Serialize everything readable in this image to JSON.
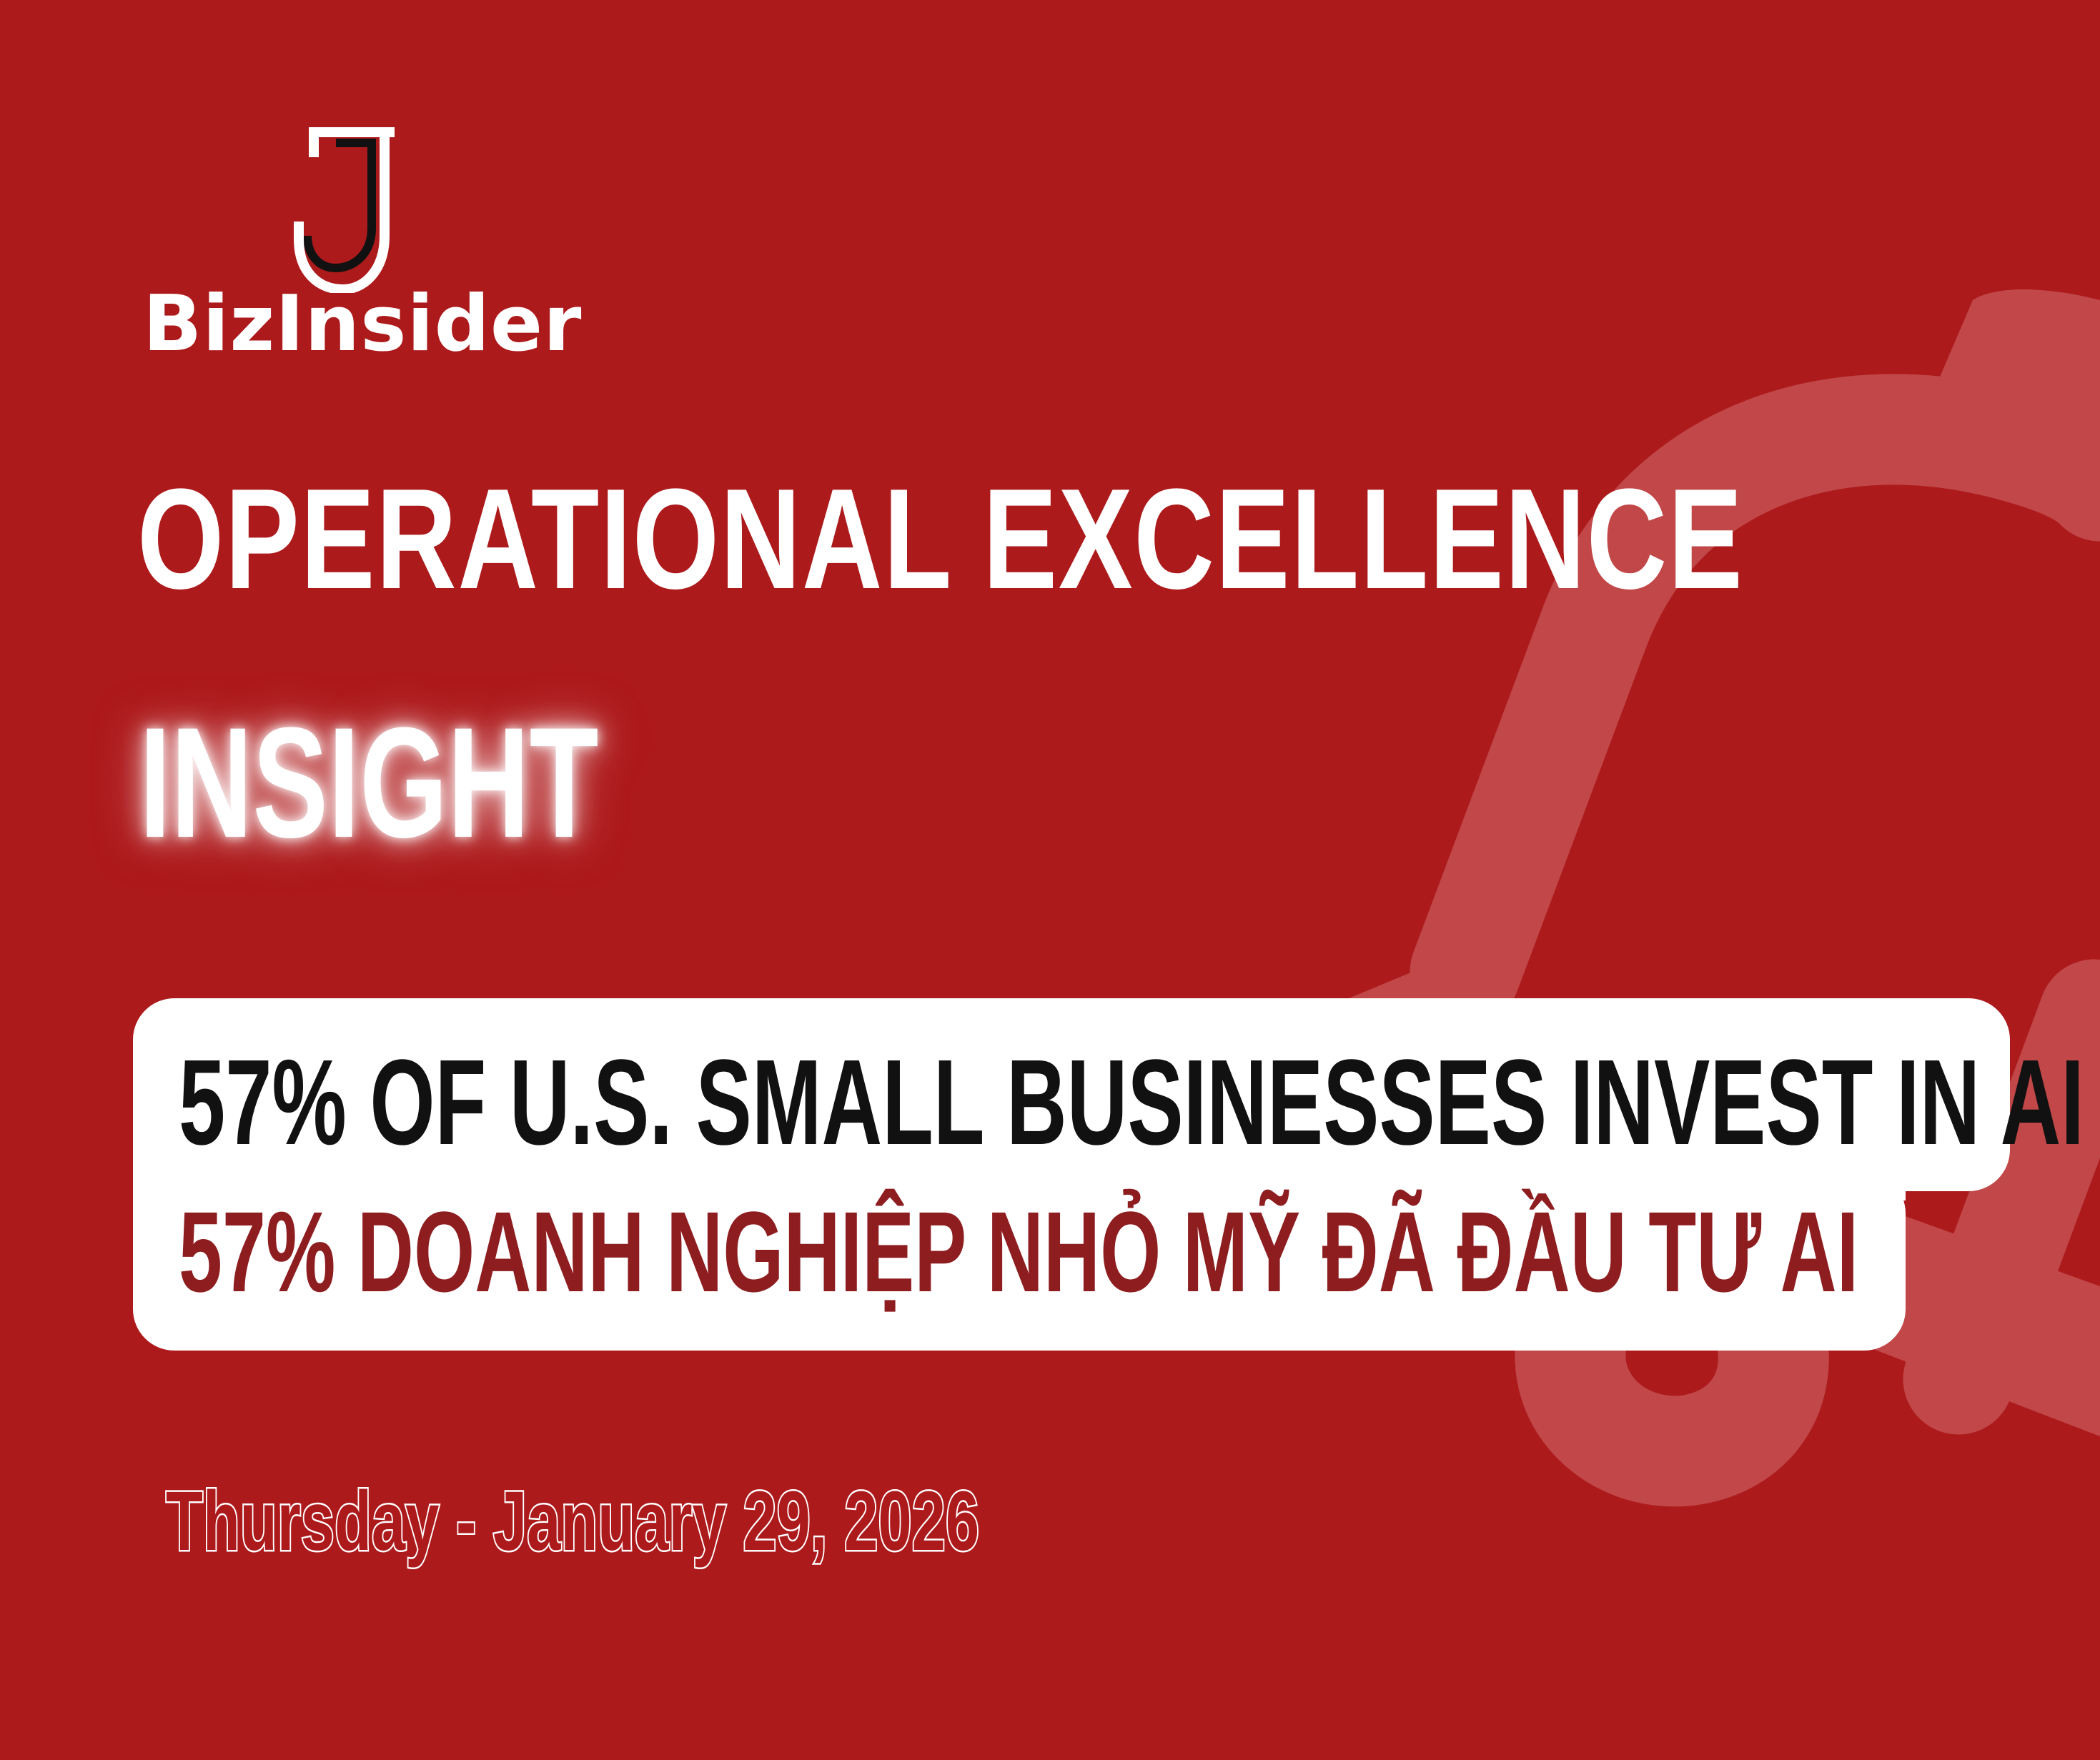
{
  "colors": {
    "background": "#ad1a1c",
    "card": "#ffffff",
    "headline_en": "#111111",
    "headline_vi": "#8e1d20",
    "watermark": "#c14748"
  },
  "icons": {
    "logo": "j-letter-logo-icon",
    "watermark": "padlock-outline-icon"
  },
  "brand": {
    "name": "BizInsider"
  },
  "header": {
    "title": "OPERATIONAL EXCELLENCE",
    "tag": "INSIGHT"
  },
  "headline": {
    "en": "57% OF U.S. SMALL BUSINESSES INVEST IN AI",
    "vi": "57% DOANH NGHIỆP NHỎ MỸ ĐÃ ĐẦU TƯ AI"
  },
  "footer": {
    "date": "Thursday - January 29, 2026"
  }
}
